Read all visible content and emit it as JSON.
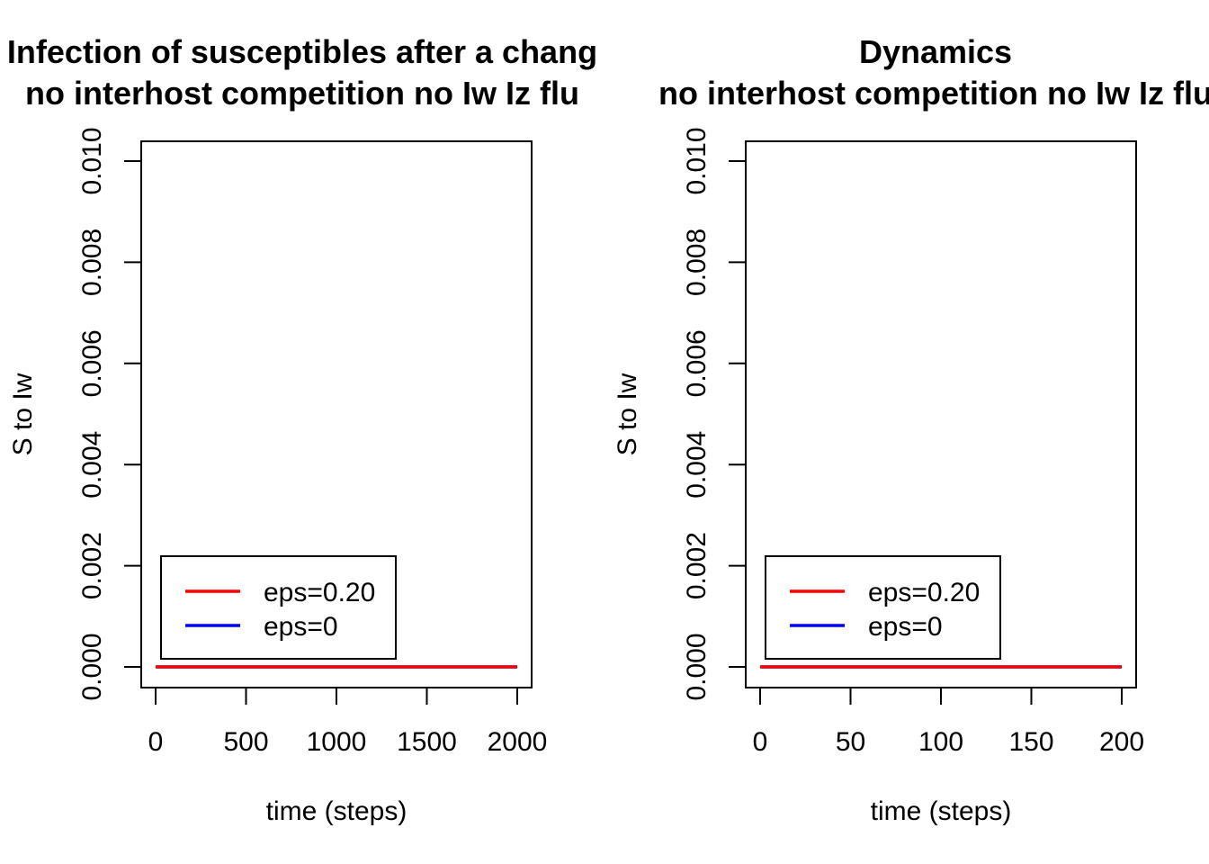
{
  "chart_data": [
    {
      "type": "line",
      "title_line1": "Infection of susceptibles after a chang",
      "title_line2": "no interhost competition no Iw Iz flu",
      "xlabel": "time (steps)",
      "ylabel": "S to Iw",
      "xlim": [
        0,
        2000
      ],
      "ylim": [
        0,
        0.01
      ],
      "x_ticks": [
        0,
        500,
        1000,
        1500,
        2000
      ],
      "x_tick_labels": [
        "0",
        "500",
        "1000",
        "1500",
        "2000"
      ],
      "y_ticks": [
        0,
        0.002,
        0.004,
        0.006,
        0.008,
        0.01
      ],
      "y_tick_labels": [
        "0.000",
        "0.002",
        "0.004",
        "0.006",
        "0.008",
        "0.010"
      ],
      "legend_position": "bottom-left",
      "series": [
        {
          "name": "eps=0.20",
          "color": "#ff0000",
          "x": [
            0,
            2000
          ],
          "y": [
            0,
            0
          ]
        },
        {
          "name": "eps=0",
          "color": "#0000ff",
          "x": [
            0,
            2000
          ],
          "y": [
            0,
            0
          ]
        }
      ]
    },
    {
      "type": "line",
      "title_line1": "Dynamics",
      "title_line2": "no interhost competition no Iw Iz flu",
      "xlabel": "time (steps)",
      "ylabel": "S to Iw",
      "xlim": [
        0,
        200
      ],
      "ylim": [
        0,
        0.01
      ],
      "x_ticks": [
        0,
        50,
        100,
        150,
        200
      ],
      "x_tick_labels": [
        "0",
        "50",
        "100",
        "150",
        "200"
      ],
      "y_ticks": [
        0,
        0.002,
        0.004,
        0.006,
        0.008,
        0.01
      ],
      "y_tick_labels": [
        "0.000",
        "0.002",
        "0.004",
        "0.006",
        "0.008",
        "0.010"
      ],
      "legend_position": "bottom-left",
      "series": [
        {
          "name": "eps=0.20",
          "color": "#ff0000",
          "x": [
            0,
            200
          ],
          "y": [
            0,
            0
          ]
        },
        {
          "name": "eps=0",
          "color": "#0000ff",
          "x": [
            0,
            200
          ],
          "y": [
            0,
            0
          ]
        }
      ]
    }
  ]
}
